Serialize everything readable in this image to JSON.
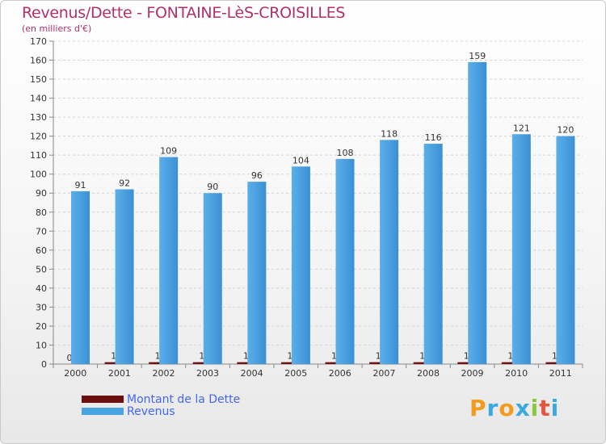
{
  "header": {
    "title": "Revenus/Dette - FONTAINE-LèS-CROISILLES",
    "subtitle": "(en milliers d'€)"
  },
  "logo": {
    "letters": [
      "P",
      "r",
      "o",
      "x",
      "i",
      "t",
      "i"
    ],
    "colors": [
      "#f29b1d",
      "#3aa9e0",
      "#f29b1d",
      "#3aa9e0",
      "#8cc63f",
      "#e2583e",
      "#3aa9e0"
    ]
  },
  "chart_data": {
    "type": "bar",
    "categories": [
      "2000",
      "2001",
      "2002",
      "2003",
      "2004",
      "2005",
      "2006",
      "2007",
      "2008",
      "2009",
      "2010",
      "2011"
    ],
    "series": [
      {
        "name": "Montant de la Dette",
        "color": "#6b0f0f",
        "values": [
          0,
          1,
          1,
          1,
          1,
          1,
          1,
          1,
          1,
          1,
          1,
          1
        ]
      },
      {
        "name": "Revenus",
        "color": "#4aa3e3",
        "values": [
          91,
          92,
          109,
          90,
          96,
          104,
          108,
          118,
          116,
          159,
          121,
          120
        ]
      }
    ],
    "ylim": [
      0,
      170
    ],
    "yticks": [
      0,
      10,
      20,
      30,
      40,
      50,
      60,
      70,
      80,
      90,
      100,
      110,
      120,
      130,
      140,
      150,
      160,
      170
    ],
    "grid": true,
    "legend_position": "bottom-left"
  }
}
